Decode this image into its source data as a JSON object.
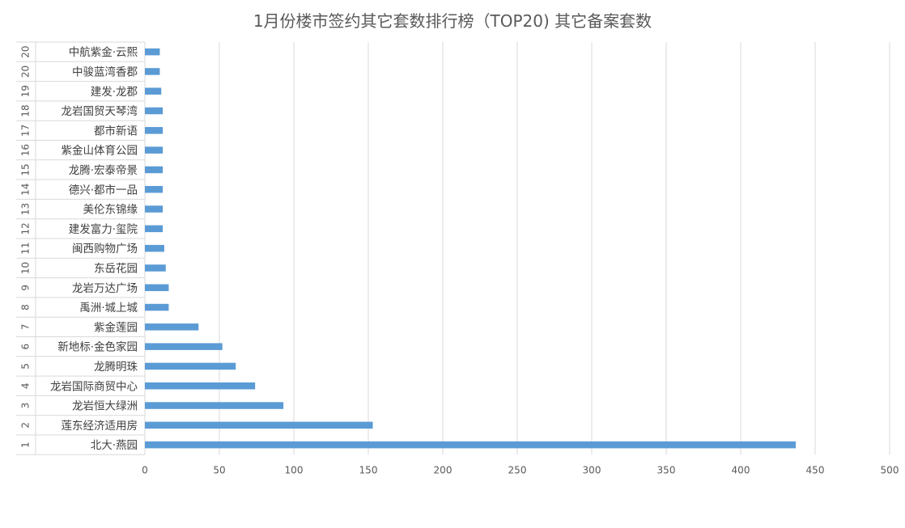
{
  "chart_data": {
    "type": "bar",
    "orientation": "horizontal",
    "title": "1月份楼市签约其它套数排行榜（TOP20) 其它备案套数",
    "xlim": [
      0,
      500
    ],
    "xticks": [
      0,
      50,
      100,
      150,
      200,
      250,
      300,
      350,
      400,
      450,
      500
    ],
    "grid": true,
    "legend": "none",
    "bar_color": "#5b9bd5",
    "categories": [
      {
        "rank": "1",
        "name": "北大·燕园",
        "value": 437
      },
      {
        "rank": "2",
        "name": "莲东经济适用房",
        "value": 153
      },
      {
        "rank": "3",
        "name": "龙岩恒大绿洲",
        "value": 93
      },
      {
        "rank": "4",
        "name": "龙岩国际商贸中心",
        "value": 74
      },
      {
        "rank": "5",
        "name": "龙腾明珠",
        "value": 61
      },
      {
        "rank": "6",
        "name": "新地标·金色家园",
        "value": 52
      },
      {
        "rank": "7",
        "name": "紫金莲园",
        "value": 36
      },
      {
        "rank": "8",
        "name": "禹洲·城上城",
        "value": 16
      },
      {
        "rank": "9",
        "name": "龙岩万达广场",
        "value": 16
      },
      {
        "rank": "10",
        "name": "东岳花园",
        "value": 14
      },
      {
        "rank": "11",
        "name": "闽西购物广场",
        "value": 13
      },
      {
        "rank": "12",
        "name": "建发富力·玺院",
        "value": 12
      },
      {
        "rank": "13",
        "name": "美伦东锦缘",
        "value": 12
      },
      {
        "rank": "14",
        "name": "德兴·都市一品",
        "value": 12
      },
      {
        "rank": "15",
        "name": "龙腾·宏泰帝景",
        "value": 12
      },
      {
        "rank": "16",
        "name": "紫金山体育公园",
        "value": 12
      },
      {
        "rank": "17",
        "name": "都市新语",
        "value": 12
      },
      {
        "rank": "18",
        "name": "龙岩国贸天琴湾",
        "value": 12
      },
      {
        "rank": "19",
        "name": "建发·龙郡",
        "value": 11
      },
      {
        "rank": "20",
        "name": "中骏蓝湾香郡",
        "value": 10
      },
      {
        "rank": "20",
        "name": "中航紫金·云熙",
        "value": 10
      }
    ]
  }
}
